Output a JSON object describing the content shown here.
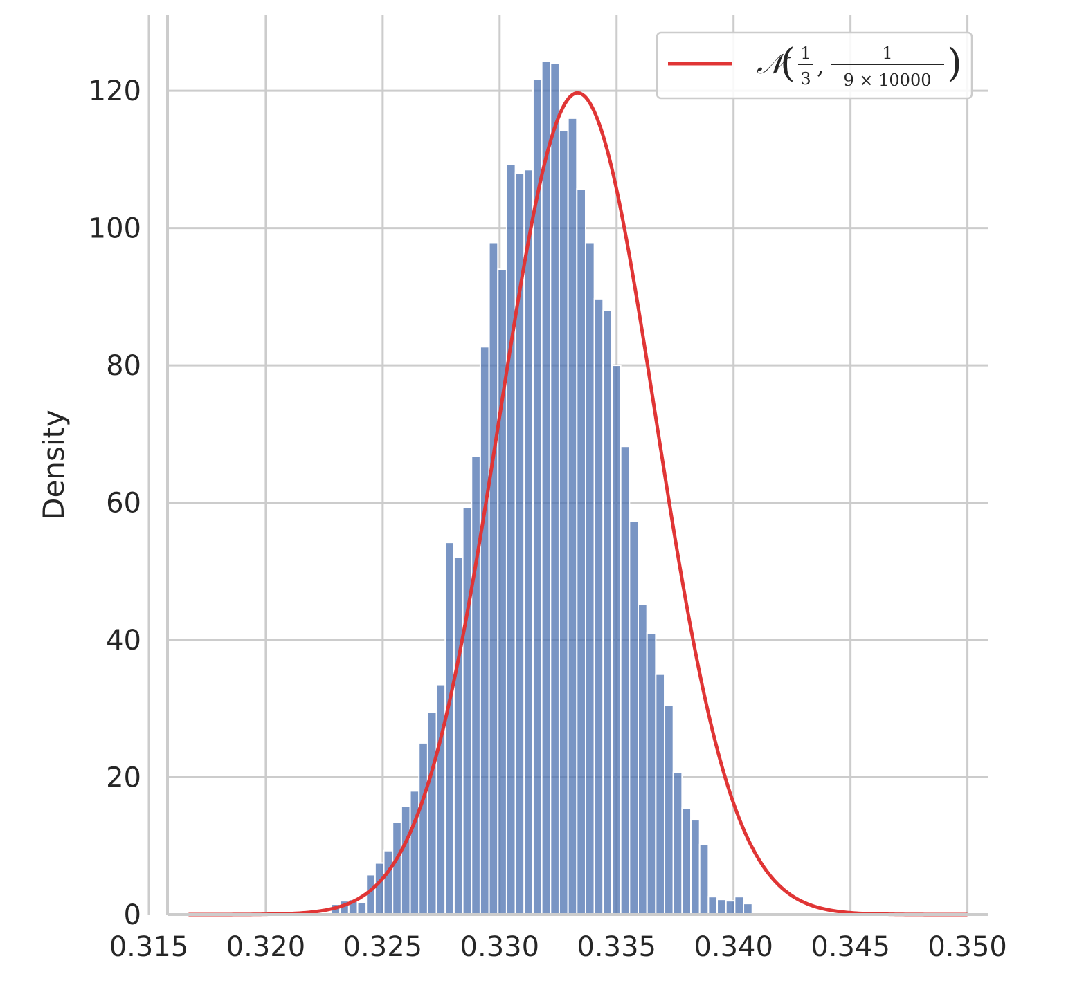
{
  "chart_data": {
    "type": "bar",
    "ylabel": "Density",
    "xlabel": "",
    "xlim": [
      0.3158,
      0.3509
    ],
    "ylim": [
      0,
      131
    ],
    "xticks": [
      "0.315",
      "0.320",
      "0.325",
      "0.330",
      "0.335",
      "0.340",
      "0.345",
      "0.350"
    ],
    "xtick_values": [
      0.315,
      0.32,
      0.325,
      0.33,
      0.335,
      0.34,
      0.345,
      0.35
    ],
    "yticks": [
      "0",
      "20",
      "40",
      "60",
      "80",
      "100",
      "120"
    ],
    "ytick_values": [
      0,
      20,
      40,
      60,
      80,
      100,
      120
    ],
    "grid": true,
    "legend": {
      "placement": "top-right",
      "entries": [
        {
          "label_parts": {
            "symbol": "𝒩",
            "mean_num": "1",
            "mean_den": "3",
            "var_num": "1",
            "var_den": "9 × 10000"
          },
          "color": "#e03535"
        }
      ]
    },
    "histogram": {
      "color": "#4c72b0",
      "bin_start": 0.3228,
      "bin_width": 0.000375,
      "values": [
        1.5,
        2.0,
        2.2,
        1.8,
        5.8,
        7.5,
        9.3,
        13.5,
        15.8,
        18.0,
        25.0,
        29.5,
        33.5,
        54.2,
        52.0,
        59.3,
        66.8,
        82.7,
        97.9,
        94.0,
        109.3,
        108.0,
        108.5,
        121.7,
        124.3,
        124.0,
        114.2,
        116.0,
        105.7,
        97.9,
        89.7,
        88.0,
        80.0,
        68.2,
        57.3,
        45.2,
        41.0,
        35.0,
        30.5,
        20.7,
        15.5,
        13.8,
        10.2,
        2.6,
        2.2,
        2.0,
        2.6,
        1.6
      ]
    },
    "series": [
      {
        "type": "line",
        "distribution": "normal",
        "mean": 0.3333333,
        "variance": 1.11111e-05,
        "x_range": [
          0.3167,
          0.35
        ],
        "color": "#e03535"
      }
    ]
  }
}
